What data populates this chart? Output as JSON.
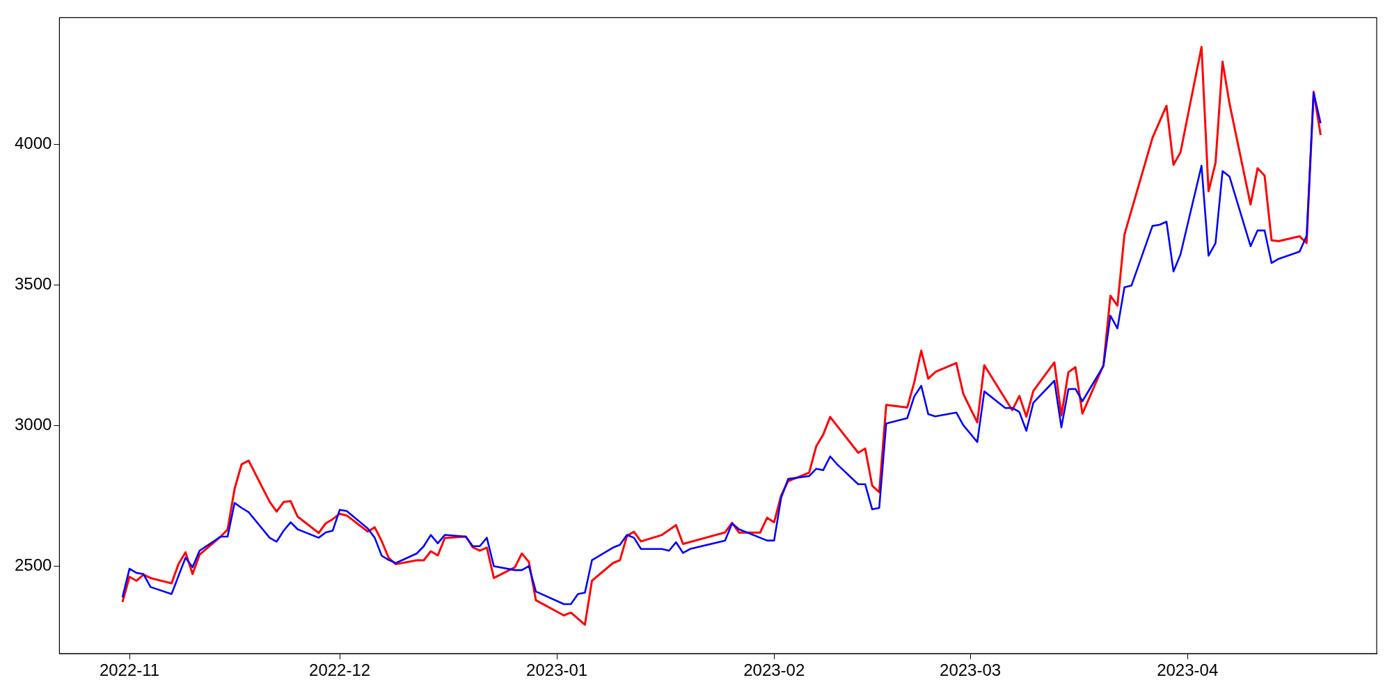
{
  "chart_data": {
    "type": "line",
    "xlim": [
      "2022-10-22",
      "2023-04-28"
    ],
    "xticks": [
      {
        "value": "2022-11-01",
        "label": "2022-11"
      },
      {
        "value": "2022-12-01",
        "label": "2022-12"
      },
      {
        "value": "2023-01-01",
        "label": "2023-01"
      },
      {
        "value": "2023-02-01",
        "label": "2023-02"
      },
      {
        "value": "2023-03-01",
        "label": "2023-03"
      },
      {
        "value": "2023-04-01",
        "label": "2023-04"
      }
    ],
    "ylim": [
      2190,
      4450
    ],
    "yticks": [
      2500,
      3000,
      3500,
      4000
    ],
    "grid": false,
    "legend": false,
    "marker": "none",
    "line_style": "solid",
    "series": [
      {
        "color": "#ff0000",
        "x": [
          "2022-10-31",
          "2022-11-01",
          "2022-11-02",
          "2022-11-03",
          "2022-11-04",
          "2022-11-07",
          "2022-11-08",
          "2022-11-09",
          "2022-11-10",
          "2022-11-11",
          "2022-11-14",
          "2022-11-15",
          "2022-11-16",
          "2022-11-17",
          "2022-11-18",
          "2022-11-21",
          "2022-11-22",
          "2022-11-23",
          "2022-11-24",
          "2022-11-25",
          "2022-11-28",
          "2022-11-29",
          "2022-11-30",
          "2022-12-01",
          "2022-12-02",
          "2022-12-05",
          "2022-12-06",
          "2022-12-07",
          "2022-12-08",
          "2022-12-09",
          "2022-12-12",
          "2022-12-13",
          "2022-12-14",
          "2022-12-15",
          "2022-12-16",
          "2022-12-19",
          "2022-12-20",
          "2022-12-21",
          "2022-12-22",
          "2022-12-23",
          "2022-12-26",
          "2022-12-27",
          "2022-12-28",
          "2022-12-29",
          "2023-01-02",
          "2023-01-03",
          "2023-01-05",
          "2023-01-06",
          "2023-01-09",
          "2023-01-10",
          "2023-01-11",
          "2023-01-12",
          "2023-01-13",
          "2023-01-16",
          "2023-01-18",
          "2023-01-19",
          "2023-01-25",
          "2023-01-26",
          "2023-01-27",
          "2023-01-30",
          "2023-01-31",
          "2023-02-01",
          "2023-02-02",
          "2023-02-03",
          "2023-02-06",
          "2023-02-07",
          "2023-02-08",
          "2023-02-09",
          "2023-02-13",
          "2023-02-14",
          "2023-02-15",
          "2023-02-16",
          "2023-02-17",
          "2023-02-20",
          "2023-02-21",
          "2023-02-22",
          "2023-02-23",
          "2023-02-24",
          "2023-02-27",
          "2023-02-28",
          "2023-03-02",
          "2023-03-03",
          "2023-03-07",
          "2023-03-08",
          "2023-03-09",
          "2023-03-10",
          "2023-03-13",
          "2023-03-14",
          "2023-03-15",
          "2023-03-16",
          "2023-03-17",
          "2023-03-20",
          "2023-03-21",
          "2023-03-22",
          "2023-03-23",
          "2023-03-27",
          "2023-03-29",
          "2023-03-30",
          "2023-03-31",
          "2023-04-03",
          "2023-04-04",
          "2023-04-05",
          "2023-04-06",
          "2023-04-07",
          "2023-04-10",
          "2023-04-11",
          "2023-04-12",
          "2023-04-13",
          "2023-04-14",
          "2023-04-17",
          "2023-04-18",
          "2023-04-19",
          "2023-04-20"
        ],
        "values": [
          2374,
          2463,
          2449,
          2471,
          2459,
          2440,
          2509,
          2550,
          2473,
          2542,
          2606,
          2631,
          2776,
          2863,
          2876,
          2730,
          2695,
          2729,
          2732,
          2677,
          2619,
          2653,
          2668,
          2687,
          2681,
          2624,
          2639,
          2590,
          2530,
          2508,
          2522,
          2522,
          2554,
          2539,
          2601,
          2606,
          2568,
          2556,
          2567,
          2459,
          2497,
          2546,
          2516,
          2380,
          2326,
          2336,
          2293,
          2449,
          2512,
          2522,
          2609,
          2623,
          2589,
          2612,
          2647,
          2580,
          2621,
          2655,
          2620,
          2620,
          2673,
          2657,
          2752,
          2803,
          2833,
          2926,
          2968,
          3031,
          2904,
          2919,
          2787,
          2764,
          3074,
          3065,
          3154,
          3267,
          3167,
          3191,
          3223,
          3113,
          3012,
          3215,
          3055,
          3106,
          3032,
          3124,
          3225,
          3036,
          3190,
          3208,
          3043,
          3215,
          3462,
          3427,
          3679,
          4023,
          4137,
          3927,
          3972,
          4346,
          3833,
          3934,
          4294,
          4144,
          3786,
          3915,
          3889,
          3659,
          3656,
          3673,
          3649,
          4187,
          4033
        ]
      },
      {
        "color": "#0000ff",
        "x": [
          "2022-10-31",
          "2022-11-01",
          "2022-11-02",
          "2022-11-03",
          "2022-11-04",
          "2022-11-07",
          "2022-11-09",
          "2022-11-10",
          "2022-11-11",
          "2022-11-14",
          "2022-11-15",
          "2022-11-16",
          "2022-11-17",
          "2022-11-18",
          "2022-11-21",
          "2022-11-22",
          "2022-11-23",
          "2022-11-24",
          "2022-11-25",
          "2022-11-28",
          "2022-11-29",
          "2022-11-30",
          "2022-12-01",
          "2022-12-02",
          "2022-12-05",
          "2022-12-06",
          "2022-12-07",
          "2022-12-08",
          "2022-12-09",
          "2022-12-12",
          "2022-12-13",
          "2022-12-14",
          "2022-12-15",
          "2022-12-16",
          "2022-12-19",
          "2022-12-20",
          "2022-12-21",
          "2022-12-22",
          "2022-12-23",
          "2022-12-26",
          "2022-12-27",
          "2022-12-28",
          "2022-12-29",
          "2023-01-02",
          "2023-01-03",
          "2023-01-04",
          "2023-01-05",
          "2023-01-06",
          "2023-01-09",
          "2023-01-10",
          "2023-01-11",
          "2023-01-12",
          "2023-01-13",
          "2023-01-16",
          "2023-01-17",
          "2023-01-18",
          "2023-01-19",
          "2023-01-20",
          "2023-01-25",
          "2023-01-26",
          "2023-01-27",
          "2023-01-31",
          "2023-02-01",
          "2023-02-02",
          "2023-02-03",
          "2023-02-06",
          "2023-02-07",
          "2023-02-08",
          "2023-02-09",
          "2023-02-10",
          "2023-02-13",
          "2023-02-14",
          "2023-02-15",
          "2023-02-16",
          "2023-02-17",
          "2023-02-20",
          "2023-02-21",
          "2023-02-22",
          "2023-02-23",
          "2023-02-24",
          "2023-02-27",
          "2023-02-28",
          "2023-03-02",
          "2023-03-03",
          "2023-03-06",
          "2023-03-07",
          "2023-03-08",
          "2023-03-09",
          "2023-03-10",
          "2023-03-13",
          "2023-03-14",
          "2023-03-15",
          "2023-03-16",
          "2023-03-17",
          "2023-03-20",
          "2023-03-21",
          "2023-03-22",
          "2023-03-23",
          "2023-03-24",
          "2023-03-27",
          "2023-03-28",
          "2023-03-29",
          "2023-03-30",
          "2023-03-31",
          "2023-04-03",
          "2023-04-04",
          "2023-04-05",
          "2023-04-06",
          "2023-04-07",
          "2023-04-10",
          "2023-04-11",
          "2023-04-12",
          "2023-04-13",
          "2023-04-14",
          "2023-04-17",
          "2023-04-18",
          "2023-04-19",
          "2023-04-20"
        ],
        "values": [
          2390,
          2492,
          2477,
          2473,
          2427,
          2402,
          2531,
          2497,
          2556,
          2606,
          2606,
          2726,
          2708,
          2693,
          2602,
          2588,
          2627,
          2657,
          2632,
          2602,
          2621,
          2627,
          2701,
          2697,
          2635,
          2602,
          2538,
          2523,
          2512,
          2546,
          2572,
          2612,
          2582,
          2612,
          2606,
          2572,
          2572,
          2602,
          2501,
          2487,
          2487,
          2501,
          2411,
          2366,
          2366,
          2402,
          2407,
          2522,
          2567,
          2577,
          2612,
          2602,
          2562,
          2562,
          2556,
          2586,
          2548,
          2562,
          2592,
          2653,
          2632,
          2592,
          2592,
          2744,
          2811,
          2821,
          2847,
          2842,
          2891,
          2863,
          2792,
          2792,
          2703,
          2708,
          3008,
          3027,
          3104,
          3142,
          3041,
          3033,
          3047,
          3002,
          2942,
          3122,
          3063,
          3063,
          3049,
          2982,
          3082,
          3160,
          2994,
          3130,
          3131,
          3087,
          3212,
          3391,
          3346,
          3492,
          3498,
          3710,
          3714,
          3725,
          3548,
          3609,
          3924,
          3604,
          3649,
          3905,
          3885,
          3638,
          3694,
          3694,
          3578,
          3593,
          3619,
          3675,
          4183,
          4075
        ]
      }
    ]
  }
}
